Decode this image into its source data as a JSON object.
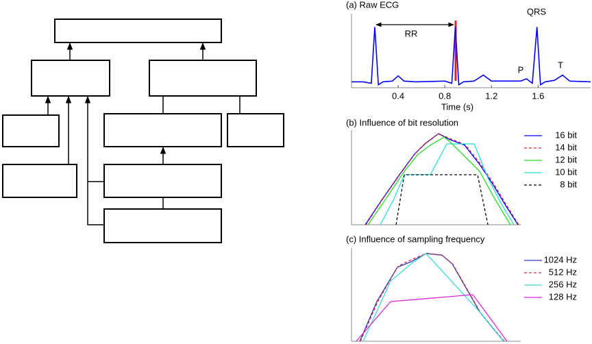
{
  "chart_data": [
    {
      "type": "line",
      "title": "(a) Raw ECG",
      "xlabel": "Time (s)",
      "color": "#0000ff",
      "x": [
        0,
        0.1,
        0.17,
        0.2,
        0.23,
        0.27,
        0.35,
        0.4,
        0.45,
        0.55,
        0.8,
        0.86,
        0.89,
        0.92,
        0.96,
        1.05,
        1.13,
        1.2,
        1.45,
        1.5,
        1.55,
        1.59,
        1.62,
        1.66,
        1.74,
        1.81,
        1.87,
        2.05
      ],
      "values": [
        0.08,
        0.08,
        0.06,
        0.82,
        0.04,
        0.08,
        0.09,
        0.16,
        0.09,
        0.08,
        0.09,
        0.06,
        0.82,
        0.04,
        0.08,
        0.09,
        0.17,
        0.09,
        0.09,
        0.12,
        0.06,
        0.82,
        0.04,
        0.08,
        0.1,
        0.17,
        0.09,
        0.08
      ],
      "xlim": [
        0,
        2.05
      ],
      "xticks": [
        0.4,
        0.8,
        1.2,
        1.6
      ],
      "ylim": [
        0,
        1
      ],
      "annotations": [
        "RR",
        "QRS",
        "P",
        "T"
      ]
    },
    {
      "type": "line",
      "title": "(b) Influence of bit resolution",
      "xlim": [
        0,
        100
      ],
      "ylim": [
        0,
        100
      ],
      "series": [
        {
          "name": "16 bit",
          "color": "#0000ff",
          "dashed": false,
          "x": [
            8.1,
            17,
            28.3,
            37.2,
            43.3,
            51.4,
            57.5,
            66.8,
            75.7,
            83.8,
            91.1,
            98.4
          ],
          "values": [
            0,
            23.9,
            52.9,
            74.6,
            85.5,
            96.4,
            90.6,
            84.1,
            63.8,
            42,
            20.3,
            0
          ]
        },
        {
          "name": "14 bit",
          "color": "#e02020",
          "dashed": true,
          "x": [
            8.5,
            17.4,
            28.7,
            37.6,
            43.7,
            51.4,
            57.9,
            67.2,
            76.1,
            84.2,
            91.5,
            98.8
          ],
          "values": [
            0,
            24.5,
            53.5,
            75.4,
            86.2,
            96.4,
            91.3,
            84.8,
            64.5,
            42.8,
            21,
            0
          ]
        },
        {
          "name": "12 bit",
          "color": "#22dd22",
          "dashed": false,
          "x": [
            9.7,
            19,
            31.2,
            39.3,
            46.6,
            54.7,
            59.5,
            75.7,
            84.6,
            93.9
          ],
          "values": [
            0,
            23.9,
            56.5,
            74.6,
            84.1,
            92.8,
            85.5,
            56.5,
            27.5,
            0
          ]
        },
        {
          "name": "10 bit",
          "color": "#22e0e0",
          "dashed": false,
          "x": [
            17,
            25.1,
            31.2,
            46.6,
            56.3,
            72.5,
            80.6,
            89.1,
            96
          ],
          "values": [
            0,
            27.5,
            52.9,
            52.9,
            85.5,
            85.5,
            49.3,
            20.3,
            0
          ]
        },
        {
          "name": "8 bit",
          "color": "#000000",
          "dashed": true,
          "x": [
            26.3,
            31.2,
            74.5,
            80.6
          ],
          "values": [
            0,
            52.9,
            52.9,
            0
          ]
        }
      ]
    },
    {
      "type": "line",
      "title": "(c) Influence of sampling frequency",
      "xlim": [
        0,
        100
      ],
      "ylim": [
        0,
        100
      ],
      "series": [
        {
          "name": "1024 Hz",
          "color": "#3333cc",
          "dashed": false,
          "x": [
            4.9,
            15,
            27.1,
            35.2,
            44.1,
            53.4,
            59.5,
            67.6,
            75.7,
            83.8,
            89.9
          ],
          "values": [
            0,
            42.6,
            79.4,
            85.3,
            94.1,
            92.6,
            83.1,
            57.4,
            31.6,
            13.2,
            0
          ]
        },
        {
          "name": "512 Hz",
          "color": "#cc3333",
          "dashed": true,
          "x": [
            5.3,
            15.4,
            27.5,
            36,
            44.5,
            53.8,
            59.9,
            68,
            76.1,
            84.2,
            90.3
          ],
          "values": [
            0,
            42,
            80.5,
            88,
            94.5,
            92,
            82.5,
            57,
            31,
            13,
            0
          ]
        },
        {
          "name": "256 Hz",
          "color": "#33dddd",
          "dashed": false,
          "x": [
            6.9,
            13,
            23.1,
            35.2,
            44.1,
            75.7,
            89.9
          ],
          "values": [
            0,
            24.3,
            64.7,
            83.1,
            94.1,
            31.6,
            0
          ]
        },
        {
          "name": "128 Hz",
          "color": "#dd22dd",
          "dashed": false,
          "x": [
            2.8,
            23.1,
            71.7,
            91.9
          ],
          "values": [
            0,
            42.6,
            50,
            0
          ]
        }
      ]
    }
  ]
}
